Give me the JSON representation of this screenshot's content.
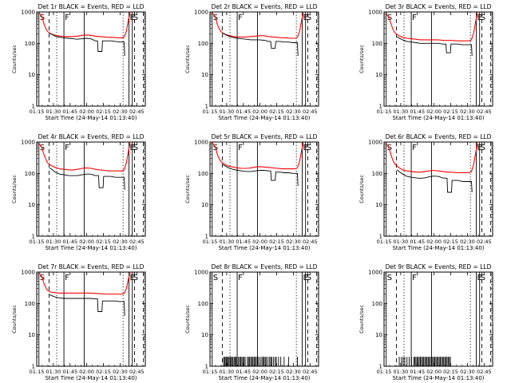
{
  "style": {
    "axis_color": "#000000",
    "events_color": "#000000",
    "lld_color": "#ff0000"
  },
  "common": {
    "xlabel": "Start Time (24-May-14 01:13:40)",
    "ylabel": "Counts/sec",
    "x_tick_labels": [
      "01:15",
      "01:30",
      "01:45",
      "02:00",
      "02:15",
      "02:30",
      "02:45"
    ],
    "x_tick_minutes": [
      1.33,
      16.33,
      31.33,
      46.33,
      61.33,
      76.33,
      91.33
    ],
    "y_tick_labels": [
      "1",
      "10",
      "100",
      "1000"
    ],
    "y_tick_values": [
      1,
      10,
      100,
      1000
    ],
    "xlim_minutes": [
      1.33,
      99
    ],
    "ylim": [
      1,
      1000
    ],
    "y_scale": "log",
    "markers": [
      {
        "label": "S",
        "minute": 3.3,
        "style": "solid"
      },
      {
        "label": "F",
        "minute": 25.8,
        "style": "solid"
      },
      {
        "label": "E",
        "minute": 84.3,
        "style": "solid"
      },
      {
        "label": "S",
        "minute": 87.3,
        "style": "solid"
      }
    ],
    "guide_lines": [
      {
        "minute": 12.4,
        "style": "dashed"
      },
      {
        "minute": 19.3,
        "style": "dotted"
      },
      {
        "minute": 44.0,
        "style": "solid"
      },
      {
        "minute": 79.0,
        "style": "dotted"
      },
      {
        "minute": 89.3,
        "style": "dashed"
      },
      {
        "minute": 97.3,
        "style": "dashed"
      }
    ]
  },
  "chart_data": [
    {
      "type": "line",
      "title": "Det 1r BLACK = Events, RED = LLD",
      "series": [
        {
          "name": "LLD",
          "color": "#ff0000",
          "x": [
            3.5,
            6,
            8,
            9.5,
            11,
            14,
            18,
            22,
            26,
            30,
            34,
            38,
            42,
            46,
            50,
            54,
            58,
            62,
            66,
            70,
            74,
            78,
            80,
            82,
            84,
            85.5
          ],
          "y": [
            950,
            700,
            400,
            300,
            240,
            200,
            180,
            170,
            165,
            165,
            165,
            170,
            180,
            185,
            180,
            170,
            165,
            160,
            155,
            155,
            150,
            150,
            160,
            250,
            600,
            1000
          ]
        },
        {
          "name": "Events",
          "color": "#000000",
          "x": [
            13,
            18,
            22,
            26,
            30,
            34,
            38,
            42,
            46,
            50,
            54,
            56,
            56.5,
            60,
            60.5,
            64,
            68,
            72,
            76,
            80,
            80.5
          ],
          "y": [
            210,
            170,
            155,
            150,
            145,
            140,
            135,
            140,
            145,
            140,
            120,
            120,
            55,
            55,
            120,
            120,
            120,
            115,
            110,
            110,
            40
          ]
        }
      ]
    },
    {
      "type": "line",
      "title": "Det 2r BLACK = Events, RED = LLD",
      "series": [
        {
          "name": "LLD",
          "color": "#ff0000",
          "x": [
            3.5,
            6,
            8,
            9.5,
            11,
            14,
            18,
            22,
            26,
            30,
            34,
            38,
            42,
            46,
            50,
            54,
            58,
            62,
            66,
            70,
            74,
            78,
            80,
            82,
            84,
            85.5
          ],
          "y": [
            950,
            700,
            400,
            300,
            240,
            200,
            180,
            165,
            160,
            160,
            160,
            165,
            170,
            175,
            175,
            165,
            160,
            155,
            150,
            150,
            145,
            145,
            155,
            250,
            600,
            1000
          ]
        },
        {
          "name": "Events",
          "color": "#000000",
          "x": [
            13,
            18,
            22,
            26,
            30,
            34,
            38,
            42,
            46,
            50,
            54,
            56,
            56.5,
            60,
            60.5,
            64,
            68,
            72,
            76,
            80,
            80.5
          ],
          "y": [
            210,
            170,
            155,
            145,
            140,
            135,
            130,
            130,
            130,
            125,
            115,
            115,
            70,
            70,
            115,
            115,
            110,
            110,
            105,
            105,
            40
          ]
        }
      ]
    },
    {
      "type": "line",
      "title": "Det 3r BLACK = Events, RED = LLD",
      "series": [
        {
          "name": "LLD",
          "color": "#ff0000",
          "x": [
            3.5,
            6,
            8,
            9.5,
            11,
            14,
            18,
            22,
            26,
            30,
            34,
            38,
            42,
            46,
            50,
            54,
            58,
            62,
            66,
            70,
            74,
            78,
            80,
            82,
            84,
            85.5
          ],
          "y": [
            900,
            600,
            380,
            270,
            220,
            180,
            155,
            145,
            140,
            135,
            130,
            130,
            130,
            130,
            130,
            125,
            125,
            125,
            120,
            120,
            120,
            120,
            130,
            220,
            550,
            1000
          ]
        },
        {
          "name": "Events",
          "color": "#000000",
          "x": [
            13,
            18,
            22,
            26,
            30,
            34,
            38,
            42,
            46,
            50,
            54,
            57,
            57.5,
            61,
            61.5,
            64,
            68,
            72,
            76,
            80,
            80.5
          ],
          "y": [
            160,
            130,
            115,
            110,
            105,
            100,
            100,
            100,
            100,
            100,
            95,
            95,
            50,
            50,
            95,
            95,
            95,
            90,
            90,
            90,
            40
          ]
        }
      ]
    },
    {
      "type": "line",
      "title": "Det 4r BLACK = Events, RED = LLD",
      "series": [
        {
          "name": "LLD",
          "color": "#ff0000",
          "x": [
            3.5,
            6,
            8,
            9.5,
            11,
            14,
            18,
            22,
            26,
            30,
            34,
            38,
            42,
            46,
            50,
            54,
            58,
            62,
            66,
            70,
            74,
            78,
            80,
            82,
            84,
            85.5
          ],
          "y": [
            900,
            650,
            380,
            280,
            220,
            180,
            155,
            140,
            135,
            130,
            130,
            135,
            145,
            150,
            145,
            135,
            130,
            125,
            120,
            120,
            120,
            120,
            130,
            220,
            550,
            1000
          ]
        },
        {
          "name": "Events",
          "color": "#000000",
          "x": [
            13,
            18,
            22,
            26,
            30,
            34,
            38,
            42,
            46,
            50,
            54,
            57,
            57.5,
            61,
            61.5,
            64,
            68,
            72,
            76,
            80,
            80.5
          ],
          "y": [
            150,
            110,
            95,
            90,
            85,
            85,
            85,
            90,
            95,
            95,
            85,
            85,
            35,
            35,
            80,
            80,
            80,
            75,
            75,
            75,
            30
          ]
        }
      ]
    },
    {
      "type": "line",
      "title": "Det 5r BLACK = Events, RED = LLD",
      "series": [
        {
          "name": "LLD",
          "color": "#ff0000",
          "x": [
            3.5,
            6,
            8,
            9.5,
            11,
            14,
            18,
            22,
            26,
            30,
            34,
            38,
            42,
            46,
            50,
            54,
            58,
            62,
            66,
            70,
            74,
            78,
            80,
            82,
            84,
            85.5
          ],
          "y": [
            950,
            700,
            400,
            300,
            240,
            200,
            170,
            160,
            150,
            145,
            145,
            150,
            160,
            165,
            160,
            155,
            150,
            145,
            140,
            140,
            140,
            140,
            150,
            250,
            600,
            1000
          ]
        },
        {
          "name": "Events",
          "color": "#000000",
          "x": [
            13,
            18,
            22,
            26,
            30,
            34,
            38,
            42,
            46,
            50,
            54,
            56,
            56.5,
            60,
            60.5,
            64,
            68,
            72,
            76,
            80,
            80.5
          ],
          "y": [
            190,
            150,
            135,
            125,
            120,
            115,
            115,
            120,
            125,
            125,
            120,
            120,
            60,
            60,
            110,
            110,
            105,
            105,
            100,
            100,
            40
          ]
        }
      ]
    },
    {
      "type": "line",
      "title": "Det 6r BLACK = Events, RED = LLD",
      "series": [
        {
          "name": "LLD",
          "color": "#ff0000",
          "x": [
            3.5,
            6,
            8,
            9.5,
            11,
            14,
            18,
            22,
            26,
            30,
            34,
            38,
            42,
            46,
            50,
            54,
            58,
            62,
            66,
            70,
            74,
            78,
            80,
            82,
            84,
            85.5
          ],
          "y": [
            900,
            600,
            350,
            250,
            200,
            160,
            130,
            120,
            115,
            110,
            110,
            115,
            120,
            125,
            120,
            115,
            110,
            110,
            105,
            105,
            105,
            105,
            115,
            200,
            500,
            1000
          ]
        },
        {
          "name": "Events",
          "color": "#000000",
          "x": [
            13,
            18,
            22,
            26,
            30,
            34,
            38,
            42,
            46,
            50,
            54,
            58,
            58.5,
            62,
            62.5,
            64,
            68,
            72,
            76,
            80,
            80.5
          ],
          "y": [
            130,
            95,
            80,
            75,
            72,
            70,
            72,
            78,
            82,
            80,
            72,
            70,
            25,
            25,
            60,
            60,
            60,
            55,
            55,
            55,
            25
          ]
        }
      ]
    },
    {
      "type": "line",
      "title": "Det 7r BLACK = Events, RED = LLD",
      "series": [
        {
          "name": "LLD",
          "color": "#ff0000",
          "x": [
            3.5,
            6,
            8,
            9.5,
            11,
            14,
            18,
            22,
            26,
            30,
            34,
            38,
            42,
            46,
            50,
            54,
            58,
            62,
            66,
            70,
            74,
            78,
            80,
            82,
            84,
            85.5
          ],
          "y": [
            950,
            700,
            420,
            320,
            260,
            230,
            220,
            215,
            215,
            215,
            215,
            215,
            215,
            215,
            215,
            210,
            205,
            200,
            200,
            200,
            200,
            200,
            210,
            300,
            650,
            1000
          ]
        },
        {
          "name": "Events",
          "color": "#000000",
          "x": [
            13,
            18,
            22,
            26,
            30,
            34,
            38,
            42,
            46,
            50,
            54,
            56,
            56.5,
            60,
            60.5,
            64,
            68,
            72,
            76,
            80,
            80.5
          ],
          "y": [
            190,
            160,
            150,
            145,
            145,
            145,
            145,
            145,
            145,
            145,
            140,
            140,
            55,
            55,
            120,
            120,
            120,
            120,
            115,
            115,
            40
          ]
        }
      ]
    },
    {
      "type": "line",
      "title": "Det 8r BLACK = Events, RED = LLD",
      "series": [
        {
          "name": "LLD",
          "color": "#ff0000",
          "x": [],
          "y": []
        },
        {
          "name": "Events",
          "color": "#000000",
          "spikes": true,
          "x": [
            13.5,
            14.5,
            15,
            16,
            17,
            17.5,
            18.5,
            19.5,
            20,
            21,
            22,
            23,
            24,
            24.5,
            25.5,
            27,
            28,
            29,
            30,
            31,
            32,
            33,
            35,
            36,
            37,
            38,
            39,
            40,
            41,
            42,
            43,
            44,
            45,
            46.5,
            48,
            49,
            50,
            51,
            52,
            53.5,
            55,
            56,
            57,
            58.5,
            60,
            61,
            63,
            65,
            68,
            72,
            80
          ],
          "y": [
            2,
            2,
            2,
            2,
            2,
            2,
            2,
            2,
            2,
            2,
            2,
            2,
            2,
            2,
            2,
            2,
            2,
            2,
            2,
            2,
            2,
            2,
            2,
            2,
            2,
            2,
            2,
            2,
            2,
            2,
            2,
            2,
            2,
            2,
            2,
            2,
            2,
            2,
            2,
            2,
            2,
            2,
            2,
            2,
            2,
            2,
            2,
            2,
            2,
            2,
            2
          ]
        }
      ]
    },
    {
      "type": "line",
      "title": "Det 9r BLACK = Events, RED = LLD",
      "series": [
        {
          "name": "LLD",
          "color": "#ff0000",
          "x": [],
          "y": []
        },
        {
          "name": "Events",
          "color": "#000000",
          "spikes": true,
          "x": [
            15,
            17,
            18.5,
            20,
            22,
            24,
            26,
            28,
            29,
            30,
            31,
            32,
            33,
            34,
            35,
            36,
            37,
            38,
            39,
            40,
            41,
            42,
            43,
            44,
            45,
            46,
            47,
            48,
            49,
            50,
            51,
            52,
            53,
            54,
            55,
            56,
            57,
            58,
            59,
            60,
            61
          ],
          "y": [
            2,
            2,
            2,
            2,
            2,
            2,
            2,
            2,
            2,
            2,
            2,
            2,
            2,
            2,
            2,
            2,
            2,
            2,
            2,
            2,
            2,
            2,
            2,
            2,
            2,
            2,
            2,
            2,
            2,
            2,
            2,
            2,
            2,
            2,
            2,
            2,
            2,
            2,
            2,
            2,
            2
          ]
        }
      ]
    }
  ]
}
